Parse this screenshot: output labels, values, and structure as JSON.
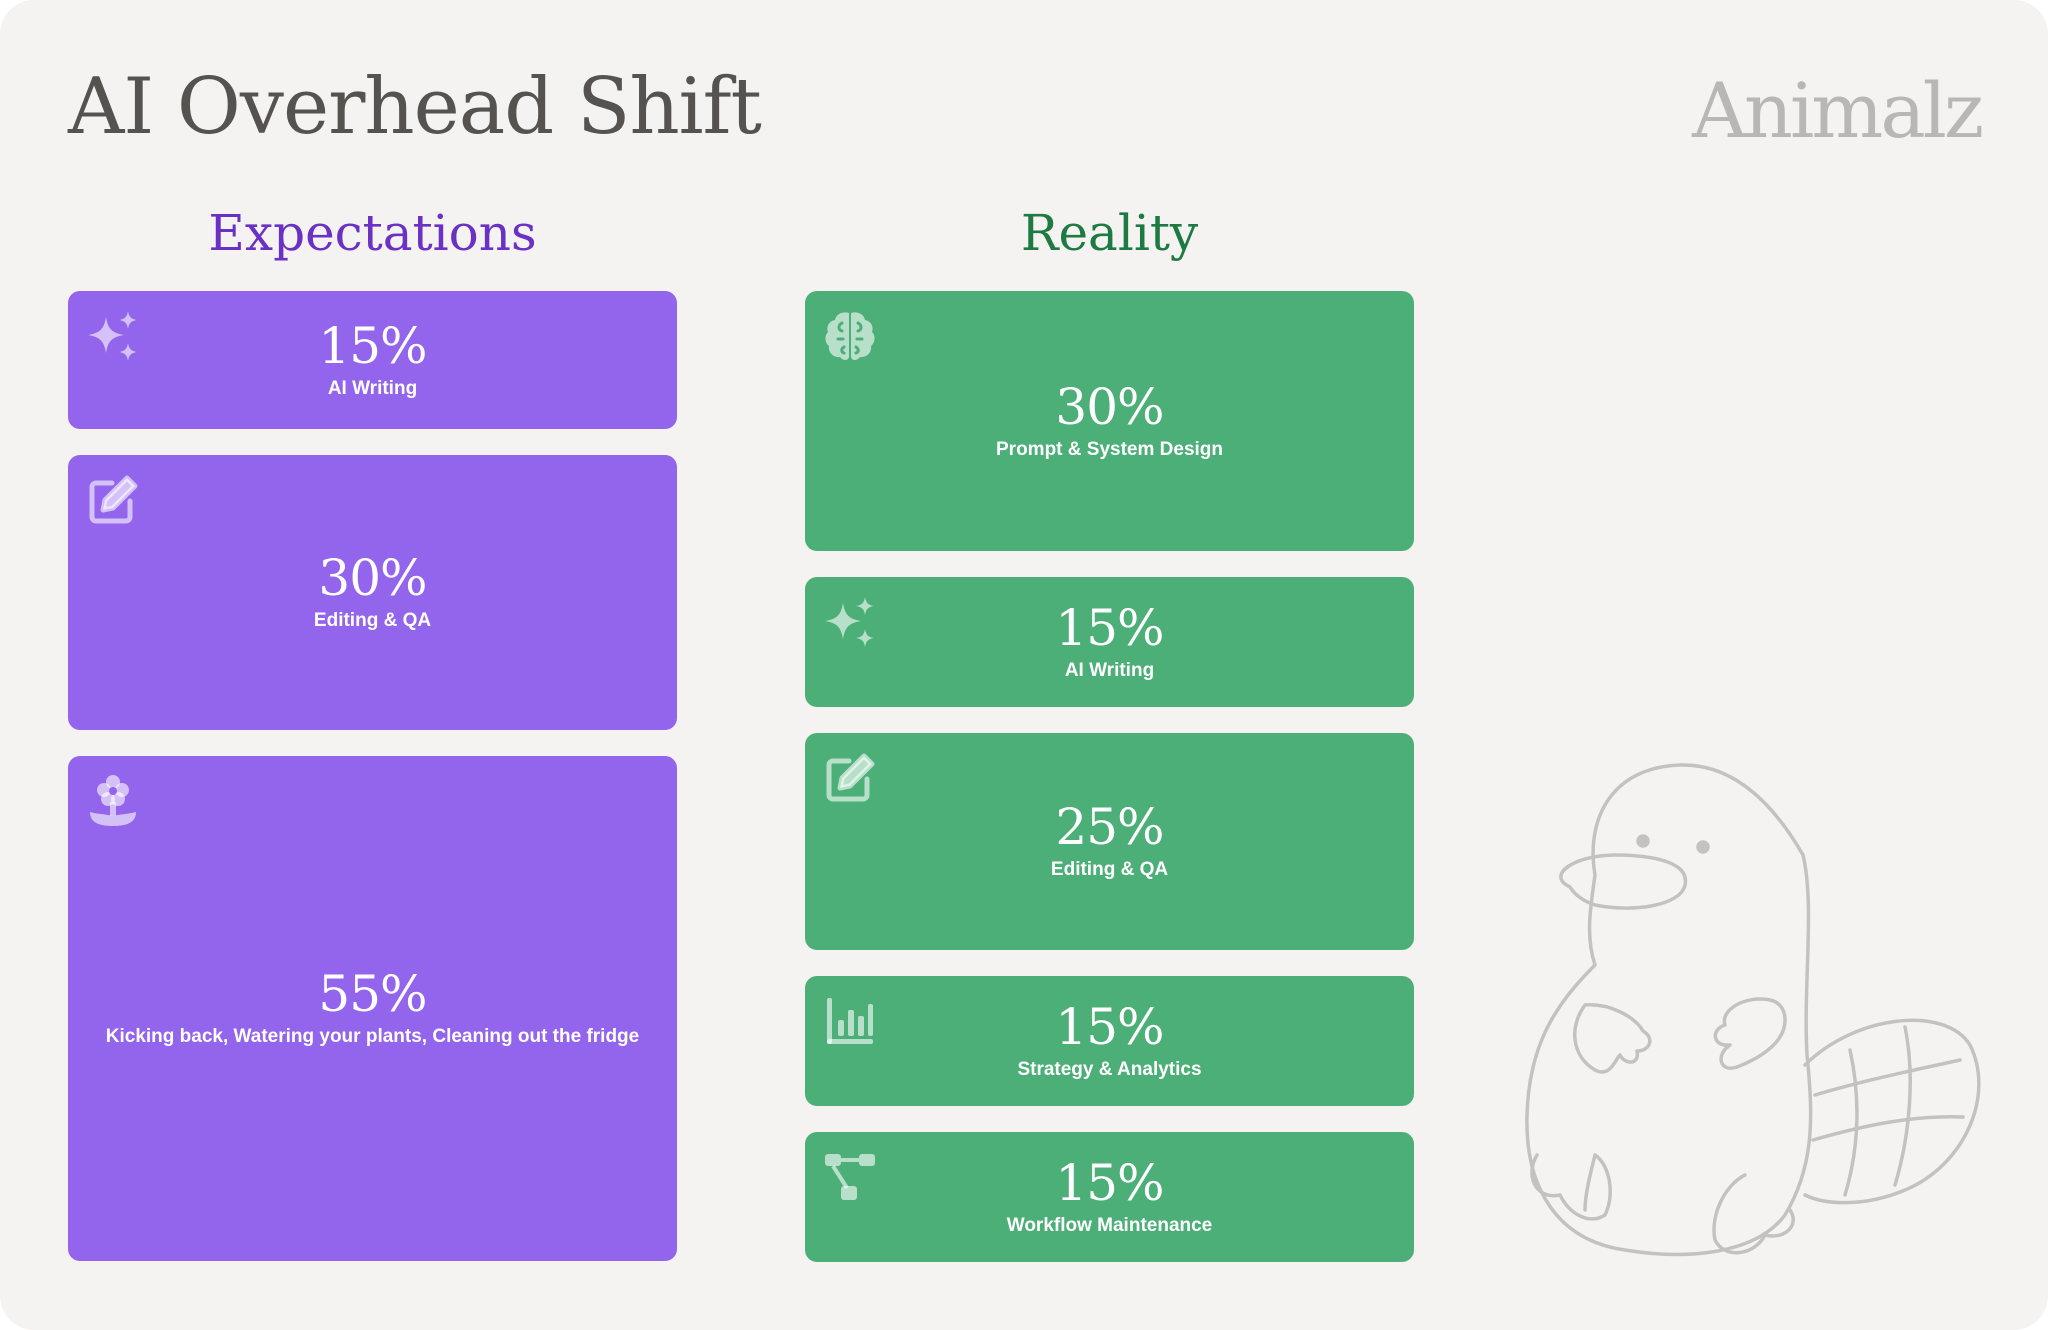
{
  "title": "AI Overhead Shift",
  "brand": "Animalz",
  "colors": {
    "expectations": "#9364ec",
    "reality": "#4daf78",
    "expectations_heading": "#6a31c5",
    "reality_heading": "#1d7a43"
  },
  "chart_data": {
    "type": "table",
    "columns": [
      {
        "key": "expectations",
        "title": "Expectations",
        "rows": [
          {
            "value": 15,
            "value_label": "15%",
            "label": "AI Writing",
            "icon": "sparkles-icon"
          },
          {
            "value": 30,
            "value_label": "30%",
            "label": "Editing & QA",
            "icon": "edit-icon"
          },
          {
            "value": 55,
            "value_label": "55%",
            "label": "Kicking back, Watering your plants, Cleaning out the fridge",
            "icon": "flower-icon"
          }
        ]
      },
      {
        "key": "reality",
        "title": "Reality",
        "rows": [
          {
            "value": 30,
            "value_label": "30%",
            "label": "Prompt & System Design",
            "icon": "brain-icon"
          },
          {
            "value": 15,
            "value_label": "15%",
            "label": "AI Writing",
            "icon": "sparkles-icon"
          },
          {
            "value": 25,
            "value_label": "25%",
            "label": "Editing & QA",
            "icon": "edit-icon"
          },
          {
            "value": 15,
            "value_label": "15%",
            "label": "Strategy & Analytics",
            "icon": "bar-chart-icon"
          },
          {
            "value": 15,
            "value_label": "15%",
            "label": "Workflow Maintenance",
            "icon": "workflow-icon"
          }
        ]
      }
    ]
  }
}
